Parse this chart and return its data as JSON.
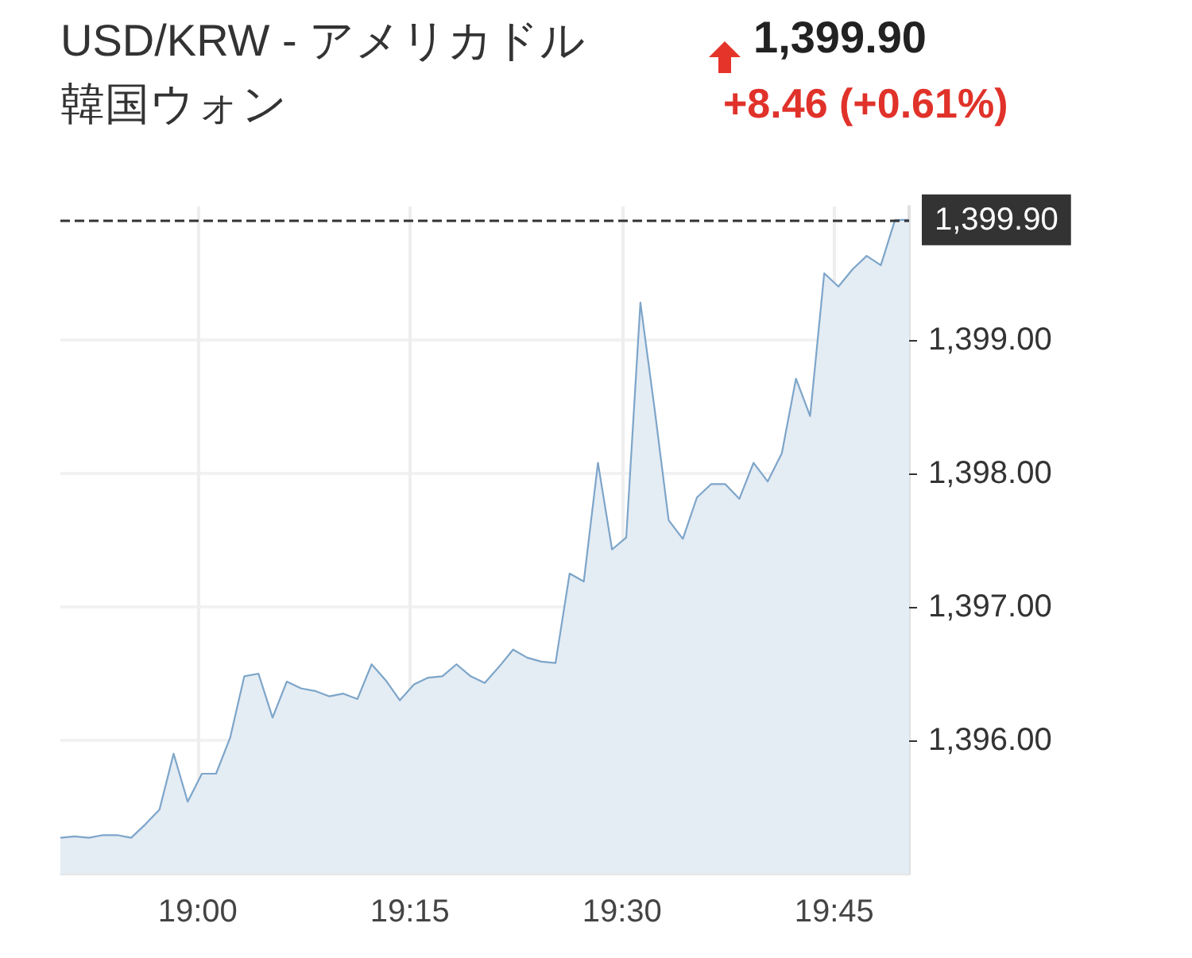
{
  "chart_data": {
    "type": "area",
    "title": "USD/KRW - アメリカドル韓国ウォン",
    "annotations": [
      "1,399.90",
      "+8.46 (+0.61%)"
    ],
    "x": [
      18.8383,
      18.855,
      18.8717,
      18.8883,
      18.905,
      18.9217,
      18.9383,
      18.955,
      18.9717,
      18.9883,
      19.005,
      19.0217,
      19.0383,
      19.055,
      19.0717,
      19.0883,
      19.105,
      19.1217,
      19.1383,
      19.155,
      19.1717,
      19.1883,
      19.205,
      19.2217,
      19.2383,
      19.255,
      19.2717,
      19.2883,
      19.305,
      19.3217,
      19.3383,
      19.355,
      19.3717,
      19.3883,
      19.405,
      19.4217,
      19.4383,
      19.455,
      19.4717,
      19.4883,
      19.505,
      19.5217,
      19.5383,
      19.555,
      19.5717,
      19.5883,
      19.605,
      19.6217,
      19.6383,
      19.655,
      19.6717,
      19.6883,
      19.705,
      19.7217,
      19.7383,
      19.755,
      19.7717,
      19.7883,
      19.805,
      19.8217,
      19.8383
    ],
    "series": [
      {
        "color": "#7da5c9",
        "values": [
          1395.27,
          1395.28,
          1395.27,
          1395.29,
          1395.29,
          1395.27,
          1395.37,
          1395.48,
          1395.9,
          1395.54,
          1395.75,
          1395.75,
          1396.02,
          1396.48,
          1396.5,
          1396.17,
          1396.44,
          1396.39,
          1396.37,
          1396.33,
          1396.35,
          1396.31,
          1396.57,
          1396.45,
          1396.3,
          1396.42,
          1396.47,
          1396.48,
          1396.57,
          1396.48,
          1396.43,
          1396.55,
          1396.68,
          1396.62,
          1396.59,
          1396.58,
          1397.25,
          1397.19,
          1398.08,
          1397.43,
          1397.52,
          1399.28,
          1398.49,
          1397.65,
          1397.51,
          1397.82,
          1397.92,
          1397.92,
          1397.81,
          1398.08,
          1397.94,
          1398.15,
          1398.71,
          1398.43,
          1399.5,
          1399.4,
          1399.53,
          1399.63,
          1399.56,
          1399.9,
          1399.9
        ]
      }
    ],
    "xlim": [
      18.8383,
      19.8383
    ],
    "xticks": [
      {
        "value": 19,
        "label": "19:00"
      },
      {
        "value": 19.25,
        "label": "19:15"
      },
      {
        "value": 19.5,
        "label": "19:30"
      },
      {
        "value": 19.75,
        "label": "19:45"
      }
    ],
    "ylim": [
      1395,
      1400
    ],
    "yticks": [
      {
        "value": 1396,
        "label": "1,396.00"
      },
      {
        "value": 1397,
        "label": "1,397.00"
      },
      {
        "value": 1398,
        "label": "1,398.00"
      },
      {
        "value": 1399,
        "label": "1,399.00"
      }
    ],
    "ref_lines": [
      {
        "axis": "y",
        "value": 1399.9,
        "label": "1,399.90",
        "color": "#333333",
        "line_style": "dashed"
      }
    ],
    "grid": true,
    "marker": "none"
  }
}
